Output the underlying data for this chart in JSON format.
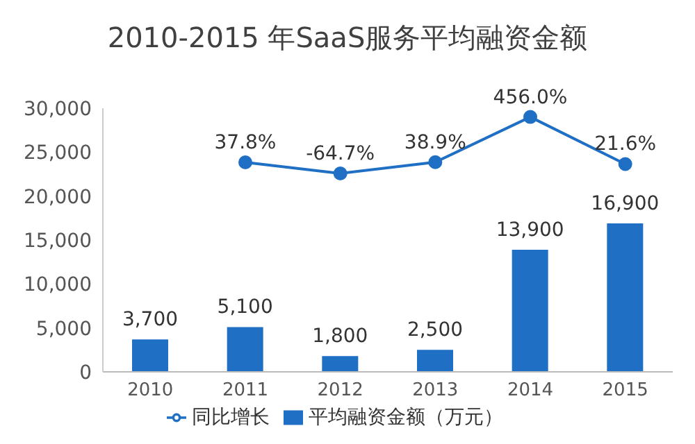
{
  "chart_data": {
    "type": "bar",
    "title": "2010-2015 年SaaS服务平均融资金额",
    "categories": [
      "2010",
      "2011",
      "2012",
      "2013",
      "2014",
      "2015"
    ],
    "series": [
      {
        "name": "平均融资金额（万元）",
        "color": "#1f6fc5",
        "values": [
          3700,
          5100,
          1800,
          2500,
          13900,
          16900
        ],
        "value_labels": [
          "3,700",
          "5,100",
          "1,800",
          "2,500",
          "13,900",
          "16,900"
        ]
      },
      {
        "name": "同比增长",
        "type": "line",
        "axis": "y2",
        "color": "#1f6fc5",
        "values": [
          null,
          37.8,
          -64.7,
          38.9,
          456.0,
          21.6
        ],
        "value_labels": [
          null,
          "37.8%",
          "-64.7%",
          "38.9%",
          "456.0%",
          "21.6%"
        ]
      }
    ],
    "ylim": [
      0,
      30000
    ],
    "yticks": [
      {
        "value": 0,
        "label": "0"
      },
      {
        "value": 5000,
        "label": "5,000"
      },
      {
        "value": 10000,
        "label": "10,000"
      },
      {
        "value": 15000,
        "label": "15,000"
      },
      {
        "value": 20000,
        "label": "20,000"
      },
      {
        "value": 25000,
        "label": "25,000"
      },
      {
        "value": 30000,
        "label": "30,000"
      }
    ],
    "grid": false,
    "legend": "bottom",
    "marker": "circle"
  }
}
